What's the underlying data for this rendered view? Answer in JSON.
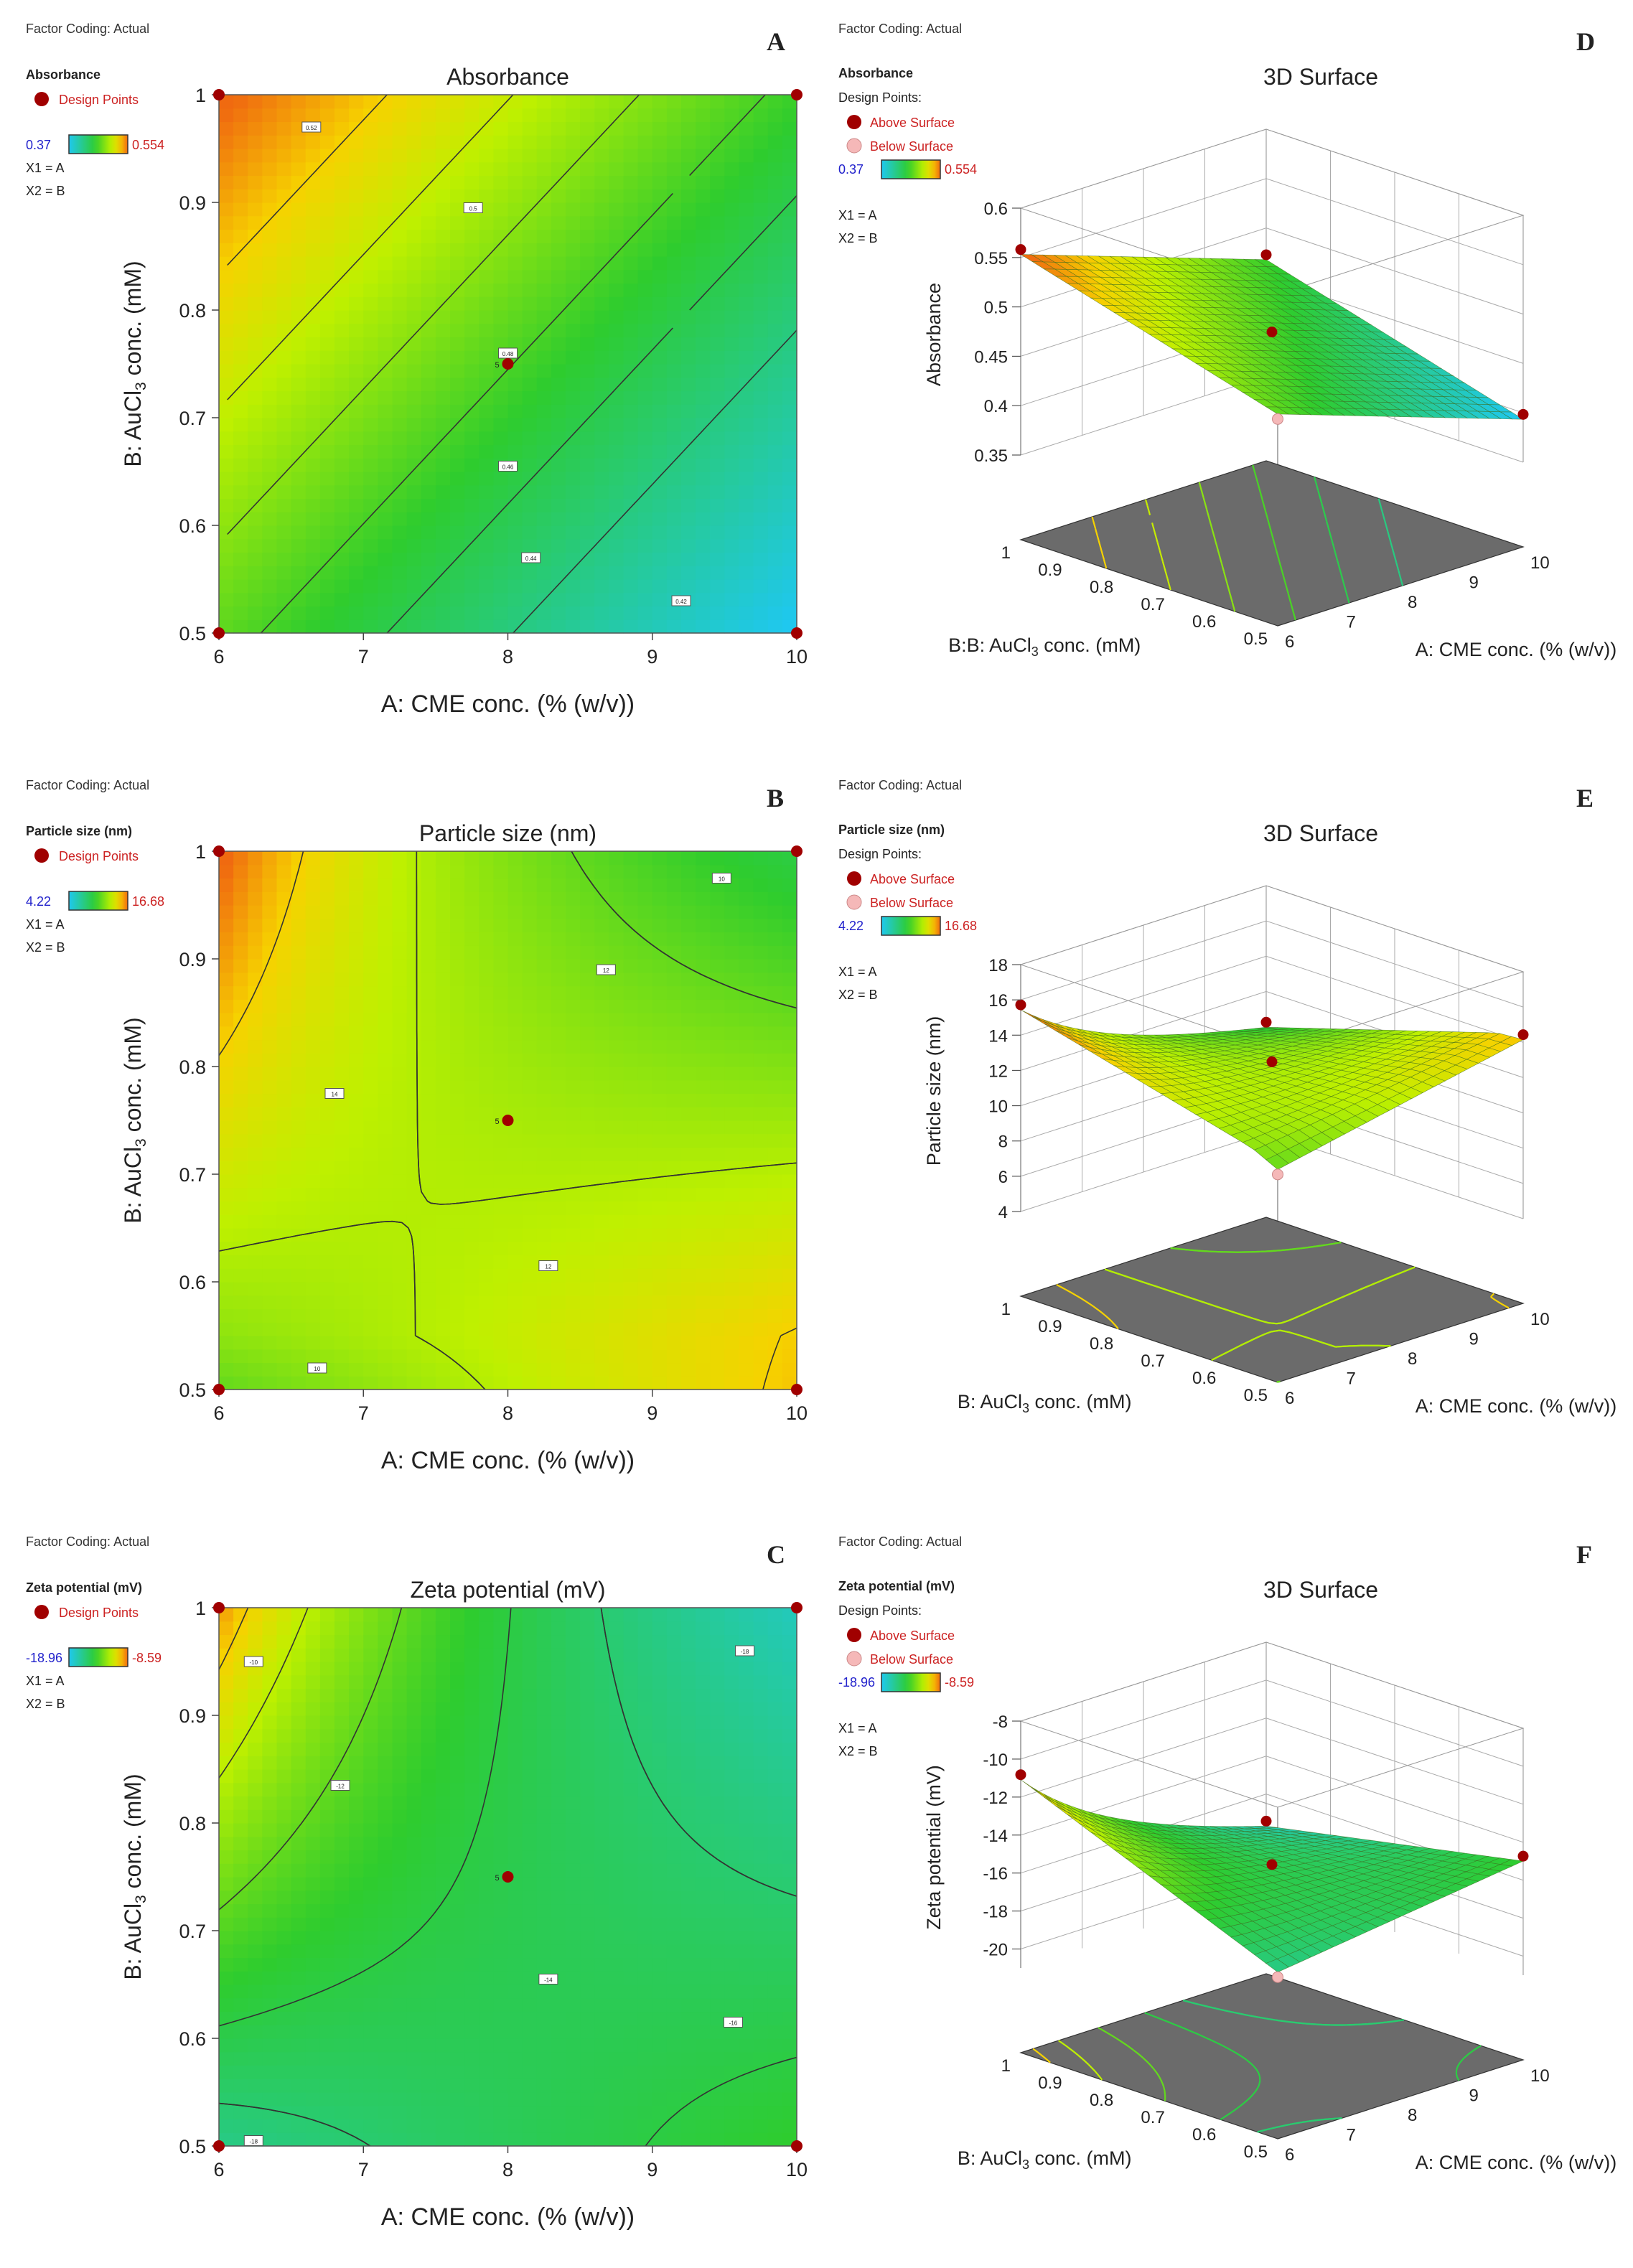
{
  "figure": {
    "factor_coding": "Factor Coding: Actual",
    "x1": "X1 = A",
    "x2": "X2 = B",
    "design_points": "Design Points",
    "design_points_colon": "Design Points:",
    "above_surface": "Above Surface",
    "below_surface": "Below Surface",
    "surface_title": "3D Surface",
    "x_axis_label": "A: CME conc. (% (w/v))",
    "y_axis_label_prefix": "B: AuCl",
    "y_axis_label_sub": "3",
    "y_axis_label_suffix": " conc. (mM)",
    "y_axis_label_d_prefix": "B:B: AuCl",
    "colors": {
      "low": "#1fc8f0",
      "mid": "#2ecc2e",
      "high": "#f06a10",
      "point": "#a00000",
      "point_below": "#f5b8b8",
      "legend_low_text": "#2222cc",
      "legend_high_text": "#cc2222",
      "floor": "#6b6b6b"
    }
  },
  "chart_data": [
    {
      "panel": "A",
      "type": "heatmap",
      "title": "Absorbance",
      "legend_title": "Absorbance",
      "xlabel": "A: CME conc. (% (w/v))",
      "ylabel": "B: AuCl3 conc. (mM)",
      "xlim": [
        6,
        10
      ],
      "ylim": [
        0.5,
        1
      ],
      "x_ticks": [
        "6",
        "7",
        "8",
        "9",
        "10"
      ],
      "y_ticks": [
        "0.5",
        "0.6",
        "0.7",
        "0.8",
        "0.9",
        "1"
      ],
      "color_range": [
        "0.37",
        "0.554"
      ],
      "contour_labels": [
        "0.52",
        "0.5",
        "0.48",
        "0.46",
        "0.44",
        "0.42"
      ],
      "design_points": [
        [
          6,
          0.5
        ],
        [
          6,
          1
        ],
        [
          10,
          0.5
        ],
        [
          10,
          1
        ],
        [
          8,
          0.75
        ]
      ],
      "center_point_count": "5"
    },
    {
      "panel": "B",
      "type": "heatmap",
      "title": "Particle size (nm)",
      "legend_title": "Particle size (nm)",
      "xlabel": "A: CME conc. (% (w/v))",
      "ylabel": "B: AuCl3 conc. (mM)",
      "xlim": [
        6,
        10
      ],
      "ylim": [
        0.5,
        1
      ],
      "x_ticks": [
        "6",
        "7",
        "8",
        "9",
        "10"
      ],
      "y_ticks": [
        "0.5",
        "0.6",
        "0.7",
        "0.8",
        "0.9",
        "1"
      ],
      "color_range": [
        "4.22",
        "16.68"
      ],
      "contour_labels": [
        "14",
        "12",
        "10",
        "12",
        "10"
      ],
      "design_points": [
        [
          6,
          0.5
        ],
        [
          6,
          1
        ],
        [
          10,
          0.5
        ],
        [
          10,
          1
        ],
        [
          8,
          0.75
        ]
      ],
      "center_point_count": "5"
    },
    {
      "panel": "C",
      "type": "heatmap",
      "title": "Zeta potential (mV)",
      "legend_title": "Zeta potential (mV)",
      "xlabel": "A: CME conc. (% (w/v))",
      "ylabel": "B: AuCl3 conc. (mM)",
      "xlim": [
        6,
        10
      ],
      "ylim": [
        0.5,
        1
      ],
      "x_ticks": [
        "6",
        "7",
        "8",
        "9",
        "10"
      ],
      "y_ticks": [
        "0.5",
        "0.6",
        "0.7",
        "0.8",
        "0.9",
        "1"
      ],
      "color_range": [
        "-18.96",
        "-8.59"
      ],
      "contour_labels": [
        "-10",
        "-12",
        "-14",
        "-18",
        "-16",
        "-18"
      ],
      "design_points": [
        [
          6,
          0.5
        ],
        [
          6,
          1
        ],
        [
          10,
          0.5
        ],
        [
          10,
          1
        ],
        [
          8,
          0.75
        ]
      ],
      "center_point_count": "5"
    },
    {
      "panel": "D",
      "type": "surface",
      "title": "3D Surface",
      "legend_title": "Absorbance",
      "xlabel": "A: CME conc. (% (w/v))",
      "ylabel": "B:B: AuCl3 conc. (mM)",
      "zlabel": "Absorbance",
      "color_range": [
        "0.37",
        "0.554"
      ],
      "z_ticks": [
        "0.35",
        "0.4",
        "0.45",
        "0.5",
        "0.55",
        "0.6"
      ],
      "x_ticks": [
        "6",
        "7",
        "8",
        "9",
        "10"
      ],
      "y_ticks": [
        "0.5",
        "0.6",
        "0.7",
        "0.8",
        "0.9",
        "1"
      ],
      "zlim": [
        0.35,
        0.6
      ]
    },
    {
      "panel": "E",
      "type": "surface",
      "title": "3D Surface",
      "legend_title": "Particle size (nm)",
      "xlabel": "A: CME conc. (% (w/v))",
      "ylabel": "B: AuCl3 conc. (mM)",
      "zlabel": "Particle size (nm)",
      "color_range": [
        "4.22",
        "16.68"
      ],
      "z_ticks": [
        "4",
        "6",
        "8",
        "10",
        "12",
        "14",
        "16",
        "18"
      ],
      "x_ticks": [
        "6",
        "7",
        "8",
        "9",
        "10"
      ],
      "y_ticks": [
        "0.5",
        "0.6",
        "0.7",
        "0.8",
        "0.9",
        "1"
      ],
      "zlim": [
        4,
        18
      ]
    },
    {
      "panel": "F",
      "type": "surface",
      "title": "3D Surface",
      "legend_title": "Zeta potential (mV)",
      "xlabel": "A: CME conc. (% (w/v))",
      "ylabel": "B: AuCl3 conc. (mM)",
      "zlabel": "Zeta potential (mV)",
      "color_range": [
        "-18.96",
        "-8.59"
      ],
      "z_ticks": [
        "-20",
        "-18",
        "-16",
        "-14",
        "-12",
        "-10",
        "-8"
      ],
      "x_ticks": [
        "6",
        "7",
        "8",
        "9",
        "10"
      ],
      "y_ticks": [
        "0.5",
        "0.6",
        "0.7",
        "0.8",
        "0.9",
        "1"
      ],
      "zlim": [
        -21,
        -8
      ]
    }
  ]
}
